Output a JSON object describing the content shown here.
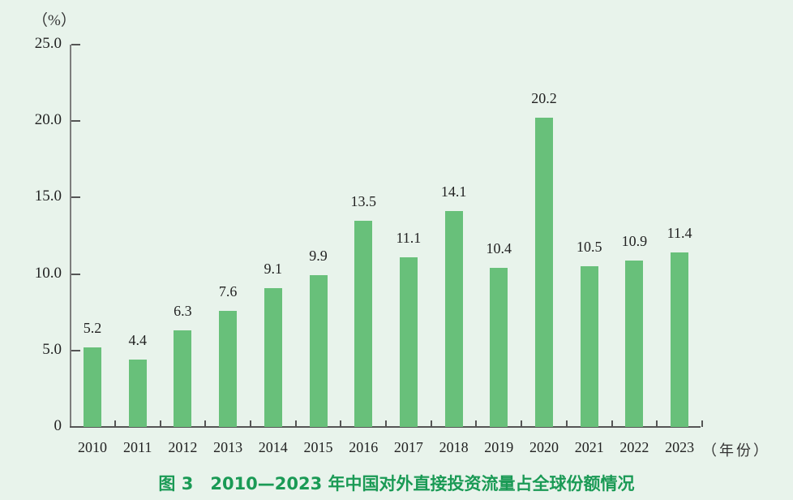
{
  "chart_data": {
    "type": "bar",
    "title": "图 3　2010—2023 年中国对外直接投资流量占全球份额情况",
    "xlabel": "（年份）",
    "ylabel": "（%）",
    "categories": [
      "2010",
      "2011",
      "2012",
      "2013",
      "2014",
      "2015",
      "2016",
      "2017",
      "2018",
      "2019",
      "2020",
      "2021",
      "2022",
      "2023"
    ],
    "values": [
      5.2,
      4.4,
      6.3,
      7.6,
      9.1,
      9.9,
      13.5,
      11.1,
      14.1,
      10.4,
      20.2,
      10.5,
      10.9,
      11.4
    ],
    "value_labels": [
      "5.2",
      "4.4",
      "6.3",
      "7.6",
      "9.1",
      "9.9",
      "13.5",
      "11.1",
      "14.1",
      "10.4",
      "20.2",
      "10.5",
      "10.9",
      "11.4"
    ],
    "yticks": [
      "0",
      "5.0",
      "10.0",
      "15.0",
      "20.0",
      "25.0"
    ],
    "ytick_values": [
      0,
      5,
      10,
      15,
      20,
      25
    ],
    "ylim": [
      0,
      25
    ],
    "grid": false,
    "legend": null,
    "bar_color": "#68c07a",
    "caption_color": "#1a9a55",
    "background": "#e8f3eb"
  }
}
